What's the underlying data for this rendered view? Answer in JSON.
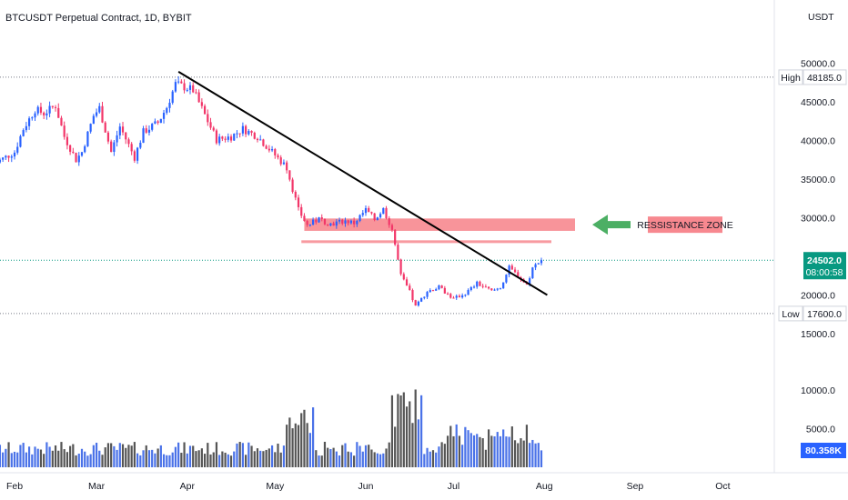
{
  "header": {
    "title": "BTCUSDT Perpetual Contract, 1D, BYBIT",
    "currency": "USDT"
  },
  "colors": {
    "up": "#2962ff",
    "down": "#f23669",
    "trendline": "#000000",
    "zone": "#f7888f",
    "arrow": "#4caf64",
    "price_tag": "#089981",
    "volume_tag": "#2962ff"
  },
  "chart_data": {
    "type": "candlestick",
    "x_months": [
      "Feb",
      "Mar",
      "Apr",
      "May",
      "Jun",
      "Jul",
      "Aug",
      "Sep",
      "Oct"
    ],
    "y_ticks": [
      "50000.0",
      "45000.0",
      "40000.0",
      "35000.0",
      "30000.0",
      "20000.0",
      "15000.0"
    ],
    "volume_ticks": [
      "10000.0",
      "5000.0"
    ],
    "y_range": [
      15000,
      51500
    ],
    "high": {
      "label": "High",
      "value": "48185.0"
    },
    "low": {
      "label": "Low",
      "value": "17600.0"
    },
    "last_price": {
      "value": "24502.0",
      "countdown": "08:00:58"
    },
    "last_volume": "80.358K",
    "annotations": [
      {
        "type": "zone",
        "text": "RESSISTANCE ZONE",
        "y_from": 28300,
        "y_to": 29900
      },
      {
        "type": "line",
        "y": 26900
      },
      {
        "type": "trendline",
        "from": {
          "x": "Mar-29",
          "y": 48900
        },
        "to": {
          "x": "Aug-02",
          "y": 20000
        }
      }
    ],
    "series": [
      {
        "kind": "close_path",
        "points": [
          [
            "Jan-25",
            37000
          ],
          [
            "Feb-01",
            38500
          ],
          [
            "Feb-04",
            41500
          ],
          [
            "Feb-08",
            44000
          ],
          [
            "Feb-11",
            43500
          ],
          [
            "Feb-15",
            44500
          ],
          [
            "Feb-18",
            40500
          ],
          [
            "Feb-22",
            37500
          ],
          [
            "Feb-24",
            38500
          ],
          [
            "Feb-28",
            43200
          ],
          [
            "Mar-02",
            44200
          ],
          [
            "Mar-06",
            38500
          ],
          [
            "Mar-09",
            41800
          ],
          [
            "Mar-14",
            37800
          ],
          [
            "Mar-17",
            41100
          ],
          [
            "Mar-22",
            42300
          ],
          [
            "Mar-25",
            44300
          ],
          [
            "Mar-28",
            47300
          ],
          [
            "Apr-01",
            46800
          ],
          [
            "Apr-03",
            46500
          ],
          [
            "Apr-08",
            42500
          ],
          [
            "Apr-11",
            40100
          ],
          [
            "Apr-16",
            40500
          ],
          [
            "Apr-20",
            41500
          ],
          [
            "Apr-25",
            40500
          ],
          [
            "Apr-30",
            38500
          ],
          [
            "May-05",
            36500
          ],
          [
            "May-09",
            31000
          ],
          [
            "May-12",
            29000
          ],
          [
            "May-16",
            29800
          ],
          [
            "May-20",
            29200
          ],
          [
            "May-25",
            29600
          ],
          [
            "May-28",
            29300
          ],
          [
            "Jun-01",
            31000
          ],
          [
            "Jun-04",
            29800
          ],
          [
            "Jun-07",
            31100
          ],
          [
            "Jun-10",
            28500
          ],
          [
            "Jun-13",
            22500
          ],
          [
            "Jun-16",
            20400
          ],
          [
            "Jun-18",
            18500
          ],
          [
            "Jun-22",
            20500
          ],
          [
            "Jun-26",
            21000
          ],
          [
            "Jul-01",
            19500
          ],
          [
            "Jul-05",
            20200
          ],
          [
            "Jul-09",
            21500
          ],
          [
            "Jul-14",
            20500
          ],
          [
            "Jul-17",
            21000
          ],
          [
            "Jul-20",
            23500
          ],
          [
            "Jul-23",
            22500
          ],
          [
            "Jul-26",
            21300
          ],
          [
            "Jul-28",
            23500
          ],
          [
            "Jul-31",
            24502
          ]
        ]
      }
    ]
  }
}
